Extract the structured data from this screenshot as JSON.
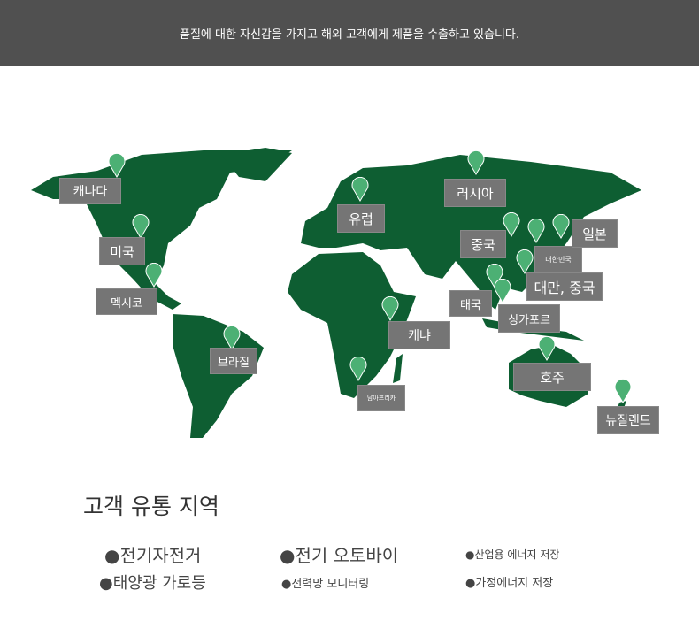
{
  "banner": {
    "text": "품질에 대한 자신감을 가지고 해외 고객에게 제품을 수출하고 있습니다."
  },
  "map": {
    "land_color": "#0e5e32",
    "pin_color": "#4cb074",
    "label_bg": "#757575",
    "regions": [
      {
        "label": "캐나다"
      },
      {
        "label": "미국"
      },
      {
        "label": "멕시코"
      },
      {
        "label": "브라질"
      },
      {
        "label": "유럽"
      },
      {
        "label": "러시아"
      },
      {
        "label": "중국"
      },
      {
        "label": "대한민국"
      },
      {
        "label": "일본"
      },
      {
        "label": "대만, 중국"
      },
      {
        "label": "태국"
      },
      {
        "label": "싱가포르"
      },
      {
        "label": "케냐"
      },
      {
        "label": "남아프리카"
      },
      {
        "label": "호주"
      },
      {
        "label": "뉴질랜드"
      }
    ]
  },
  "section": {
    "title": "고객 유통 지역",
    "items": [
      "●전기자전거",
      "●전기 오토바이",
      "●산업용 에너지 저장",
      "●태양광 가로등",
      "●전력망 모니터링",
      "●가정에너지 저장"
    ]
  }
}
